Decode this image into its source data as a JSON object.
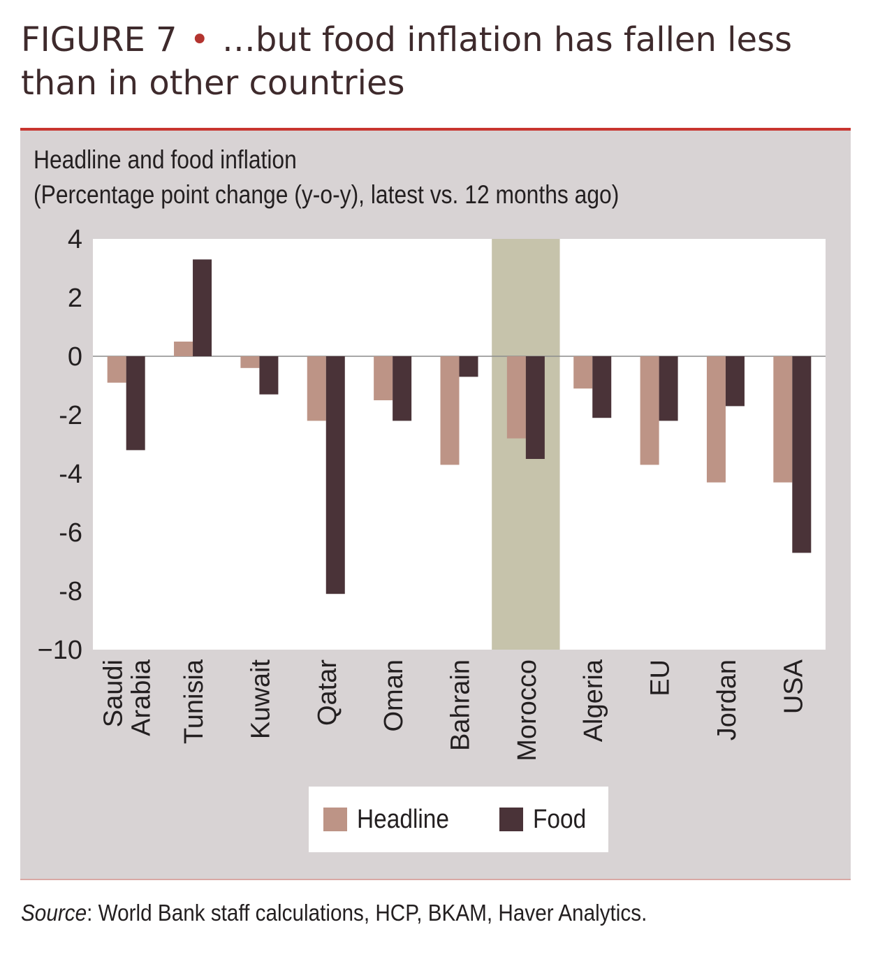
{
  "figure": {
    "label": "FIGURE 7",
    "separator": "•",
    "title": "…but food inflation has fallen less than in other countries"
  },
  "source": {
    "prefix": "Source",
    "text": ": World Bank staff calculations, HCP, BKAM, Haver Analytics."
  },
  "colors": {
    "headline": "#bd9486",
    "food": "#4a3338",
    "highlight": "#c6c3ab",
    "highlight_label": "#6b6a2e",
    "panel": "#d8d3d4",
    "accent_rule": "#c8352f"
  },
  "chart_data": {
    "type": "bar",
    "title": "Headline and food inflation",
    "subtitle": "(Percentage point change (y-o-y), latest vs. 12 months ago)",
    "categories": [
      [
        "Saudi",
        "Arabia"
      ],
      [
        "Tunisia"
      ],
      [
        "Kuwait"
      ],
      [
        "Qatar"
      ],
      [
        "Oman"
      ],
      [
        "Bahrain"
      ],
      [
        "Morocco"
      ],
      [
        "Algeria"
      ],
      [
        "EU"
      ],
      [
        "Jordan"
      ],
      [
        "USA"
      ]
    ],
    "highlight_category": "Morocco",
    "series": [
      {
        "name": "Headline",
        "values": [
          -0.9,
          0.5,
          -0.4,
          -2.2,
          -1.5,
          -3.7,
          -2.8,
          -1.1,
          -3.7,
          -4.3,
          -4.3
        ]
      },
      {
        "name": "Food",
        "values": [
          -3.2,
          3.3,
          -1.3,
          -8.1,
          -2.2,
          -0.7,
          -3.5,
          -2.1,
          -2.2,
          -1.7,
          -6.7
        ]
      }
    ],
    "ylim": [
      -10,
      4
    ],
    "yticks": [
      4,
      2,
      0,
      -2,
      -4,
      -6,
      -8,
      -10
    ],
    "ytick_labels": [
      "4",
      "2",
      "0",
      "-2",
      "-4",
      "-6",
      "-8",
      "−10"
    ],
    "xlabel": "",
    "ylabel": "",
    "legend": "bottom-center"
  }
}
